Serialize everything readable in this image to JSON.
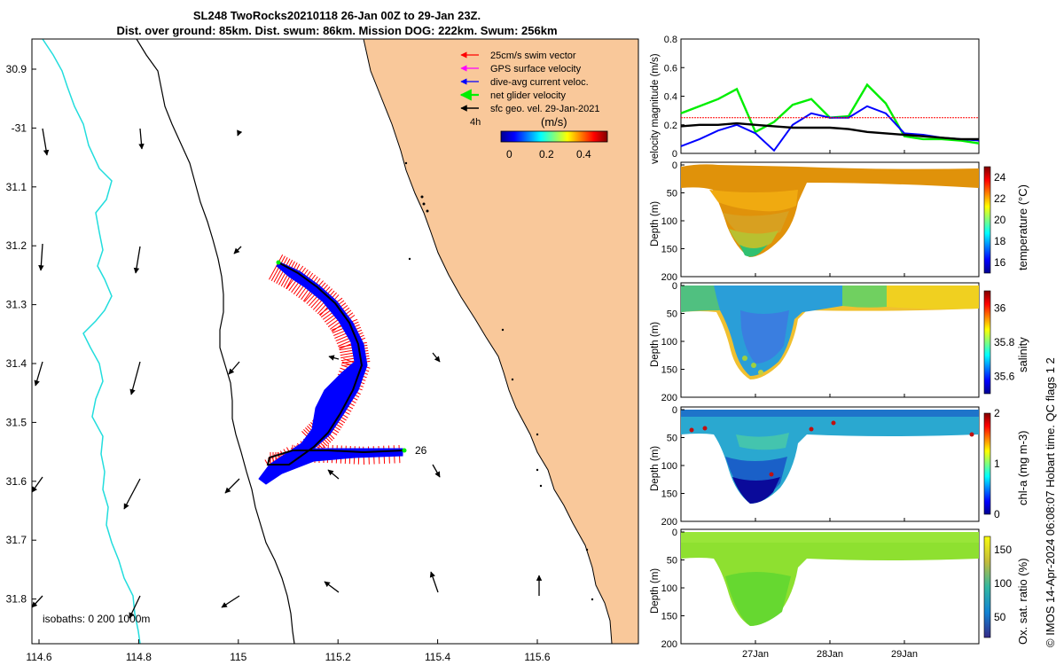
{
  "header": {
    "line1": "SL248 TwoRocks20210118 26-Jan 00Z to 29-Jan 23Z.",
    "line2": "Dist. over ground: 85km. Dist. swum: 86km. Mission DOG: 222km. Swum: 256km"
  },
  "map": {
    "legend": [
      "25cm/s swim vector",
      "GPS surface velocity",
      "dive-avg current veloc.",
      "net glider velocity",
      "sfc geo. vel. 29-Jan-2021"
    ],
    "legend_colors": [
      "#ff0000",
      "#ff00ff",
      "#0000ff",
      "#00ee00",
      "#000000"
    ],
    "scale_label": "4h",
    "colorbar_title": "(m/s)",
    "colorbar_ticks": [
      "0",
      "0.2",
      "0.4"
    ],
    "isobaths_text": "isobaths: 0   200  1000m",
    "track_label": "26",
    "lat_ticks": [
      "30.9",
      "-31",
      "31.1",
      "31.2",
      "31.3",
      "31.4",
      "31.5",
      "31.6",
      "31.7",
      "31.8"
    ],
    "lon_ticks": [
      "114.6",
      "114.8",
      "115",
      "115.2",
      "115.4",
      "115.6"
    ],
    "land_color": "#f9c89a",
    "isobath_color": "#22dddd"
  },
  "panels": {
    "velocity": {
      "ylabel": "velocity magnitude (m/s)",
      "yticks": [
        "0",
        "0.2",
        "0.4",
        "0.6",
        "0.8"
      ]
    },
    "depth_ylabel": "Depth (m)",
    "depth_ticks": [
      "0",
      "50",
      "100",
      "150",
      "200"
    ],
    "temperature": {
      "label": "temperature (°C)",
      "ticks": [
        "16",
        "18",
        "20",
        "22",
        "24"
      ]
    },
    "salinity": {
      "label": "salinity",
      "ticks": [
        "35.6",
        "35.8",
        "36"
      ]
    },
    "chla": {
      "label": "chl-a (mg m-3)",
      "ticks": [
        "0",
        "1",
        "2"
      ]
    },
    "oxygen": {
      "label": "Ox. sat. ratio (%)",
      "ticks": [
        "50",
        "100",
        "150"
      ]
    },
    "xticks": [
      "27Jan",
      "28Jan",
      "29Jan"
    ]
  },
  "credit": "© IMOS 14-Apr-2024 06:08:07 Hobart time. QC flags 1  2",
  "chart_data": [
    {
      "type": "line",
      "x": [
        26.0,
        26.25,
        26.5,
        26.75,
        27.0,
        27.25,
        27.5,
        27.75,
        28.0,
        28.25,
        28.5,
        28.75,
        29.0,
        29.25,
        29.5,
        29.75,
        30.0
      ],
      "series": [
        {
          "name": "net glider velocity",
          "values": [
            0.28,
            0.33,
            0.38,
            0.45,
            0.15,
            0.22,
            0.34,
            0.38,
            0.25,
            0.26,
            0.48,
            0.35,
            0.12,
            0.1,
            0.1,
            0.09,
            0.07
          ]
        },
        {
          "name": "dive-avg current veloc.",
          "values": [
            0.05,
            0.1,
            0.16,
            0.2,
            0.14,
            0.02,
            0.2,
            0.28,
            0.25,
            0.25,
            0.33,
            0.28,
            0.14,
            0.13,
            0.11,
            0.1,
            0.09
          ]
        },
        {
          "name": "25cm/s swim vector",
          "values": [
            0.25,
            0.25,
            0.25,
            0.25,
            0.25,
            0.25,
            0.25,
            0.25,
            0.25,
            0.25,
            0.25,
            0.25,
            0.25,
            0.25,
            0.25,
            0.25,
            0.25
          ]
        },
        {
          "name": "sfc geo. vel. 29-Jan-2021",
          "values": [
            0.19,
            0.2,
            0.2,
            0.21,
            0.2,
            0.19,
            0.18,
            0.18,
            0.18,
            0.17,
            0.15,
            0.14,
            0.13,
            0.12,
            0.11,
            0.1,
            0.1
          ]
        }
      ],
      "ylabel": "velocity magnitude (m/s)",
      "ylim": [
        0,
        0.8
      ]
    },
    {
      "type": "heatmap",
      "name": "temperature (°C)",
      "colorbar_range": [
        15,
        25
      ],
      "ylim": [
        0,
        200
      ]
    },
    {
      "type": "heatmap",
      "name": "salinity",
      "colorbar_range": [
        35.5,
        36.1
      ],
      "ylim": [
        0,
        200
      ]
    },
    {
      "type": "heatmap",
      "name": "chl-a (mg m-3)",
      "colorbar_range": [
        0,
        2
      ],
      "ylim": [
        0,
        200
      ]
    },
    {
      "type": "heatmap",
      "name": "Ox. sat. ratio (%)",
      "colorbar_range": [
        20,
        170
      ],
      "ylim": [
        0,
        200
      ]
    }
  ]
}
